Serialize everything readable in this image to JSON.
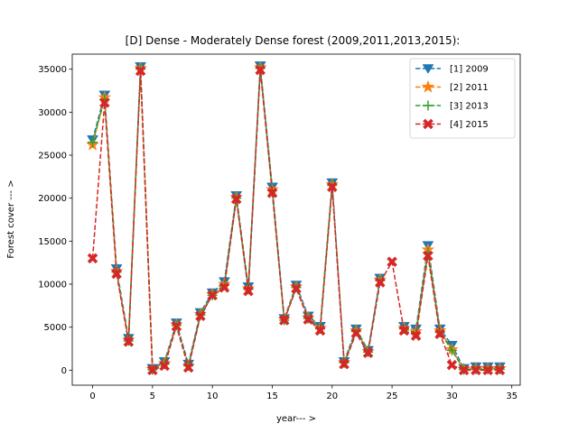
{
  "chart_data": {
    "type": "line",
    "title": "[D] Dense - Moderately Dense forest (2009,2011,2013,2015):",
    "xlabel": "year--- >",
    "ylabel": "Forest cover --- >",
    "xlim": [
      -1.7,
      35.7
    ],
    "ylim": [
      -1750,
      36750
    ],
    "xticks": [
      0,
      5,
      10,
      15,
      20,
      25,
      30,
      35
    ],
    "yticks": [
      0,
      5000,
      10000,
      15000,
      20000,
      25000,
      30000,
      35000
    ],
    "grid": false,
    "legend_position": "top-right",
    "x": [
      0,
      1,
      2,
      3,
      4,
      5,
      6,
      7,
      8,
      9,
      10,
      11,
      12,
      13,
      14,
      15,
      16,
      17,
      18,
      19,
      20,
      21,
      22,
      23,
      24,
      25,
      26,
      27,
      28,
      29,
      30,
      31,
      32,
      33,
      34
    ],
    "series": [
      {
        "name": "[1] 2009",
        "color": "#1f77b4",
        "marker": "triangle-down",
        "linestyle": "dashed",
        "values": [
          26800,
          32000,
          11800,
          3700,
          35300,
          200,
          1000,
          5500,
          700,
          6700,
          9000,
          10300,
          20300,
          9700,
          35400,
          21300,
          6000,
          9900,
          6300,
          5100,
          21800,
          1000,
          4800,
          2300,
          10700,
          null,
          5100,
          4800,
          14500,
          4800,
          2900,
          200,
          400,
          400,
          400
        ]
      },
      {
        "name": "[2] 2011",
        "color": "#ff7f0e",
        "marker": "star",
        "linestyle": "dashed",
        "values": [
          26200,
          31700,
          11500,
          3500,
          35100,
          100,
          800,
          5300,
          500,
          6500,
          8800,
          10000,
          20100,
          9500,
          35200,
          21000,
          5900,
          9700,
          6100,
          4900,
          21600,
          900,
          4600,
          2200,
          10500,
          null,
          4900,
          4500,
          14000,
          4600,
          2400,
          100,
          200,
          200,
          200
        ]
      },
      {
        "name": "[3] 2013",
        "color": "#2ca02c",
        "marker": "plus",
        "linestyle": "dashed",
        "values": [
          26500,
          31500,
          11400,
          3400,
          35000,
          50,
          700,
          5200,
          500,
          6400,
          8700,
          9900,
          20000,
          9400,
          35100,
          20900,
          5800,
          9600,
          6000,
          4800,
          21500,
          850,
          4500,
          2100,
          10400,
          null,
          4800,
          4300,
          13700,
          4400,
          2300,
          50,
          100,
          100,
          100
        ]
      },
      {
        "name": "[4] 2015",
        "color": "#d62728",
        "marker": "x",
        "linestyle": "dashed",
        "values": [
          13000,
          31100,
          11200,
          3300,
          34800,
          0,
          500,
          5100,
          300,
          6300,
          8700,
          9600,
          19900,
          9200,
          34900,
          20600,
          5800,
          9500,
          5900,
          4600,
          21300,
          700,
          4300,
          2000,
          10200,
          12600,
          4600,
          4000,
          13300,
          4200,
          600,
          0,
          0,
          0,
          0
        ]
      }
    ]
  }
}
